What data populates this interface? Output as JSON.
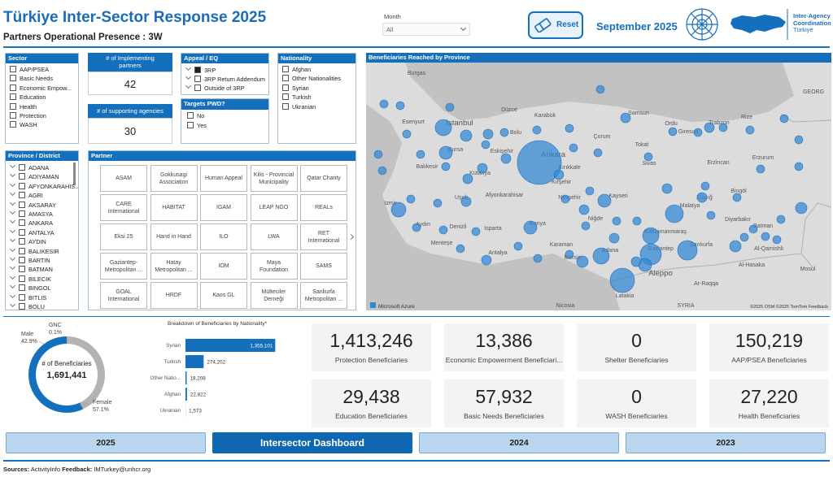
{
  "header": {
    "title": "Türkiye Inter-Sector Response 2025",
    "subtitle": "Partners Operational Presence : 3W",
    "month_label": "Month",
    "month_value": "All",
    "reset": "Reset",
    "period": "September 2025",
    "logo_text": [
      "Inter-Agency",
      "Coordination",
      "Türkiye"
    ]
  },
  "filters": {
    "sector": {
      "title": "Sector",
      "items": [
        "AAP/PSEA",
        "Basic Needs",
        "Economic Empow...",
        "Education",
        "Health",
        "Protection",
        "WASH"
      ]
    },
    "appeal": {
      "title": "Appeal / EQ",
      "items": [
        "3RP",
        "3RP Return Addendum",
        "Outside of 3RP"
      ]
    },
    "pwd": {
      "title": "Targets PWD?",
      "items": [
        "No",
        "Yes"
      ]
    },
    "nationality": {
      "title": "Nationality",
      "items": [
        "Afghan",
        "Other Nationalities",
        "Syrian",
        "Turkish",
        "Ukranian"
      ]
    },
    "province": {
      "title": "Province / District",
      "items": [
        "ADANA",
        "ADIYAMAN",
        "AFYONKARAHIS...",
        "AGRI",
        "AKSARAY",
        "AMASYA",
        "ANKARA",
        "ANTALYA",
        "AYDIN",
        "BALIKESIR",
        "BARTIN",
        "BATMAN",
        "BILECIK",
        "BINGOL",
        "BITLIS",
        "BOLU"
      ]
    }
  },
  "counts": [
    {
      "title": "# of Implementing partners",
      "value": "42"
    },
    {
      "title": "# of supporting agencies",
      "value": "30"
    }
  ],
  "partners": {
    "title": "Partner",
    "items": [
      "ASAM",
      "Gokkusagi Association",
      "Human Appeal",
      "Kilis - Provincial Municipality",
      "Qatar Charity",
      "CARE International",
      "HABITAT",
      "IGAM",
      "LEAP NGO",
      "REALs",
      "Eksi 25",
      "Hand in Hand",
      "ILO",
      "LWA",
      "RET International",
      "Gaziantep-Metropolitan ...",
      "Hatay Metropolitan ...",
      "IOM",
      "Maya Foundation",
      "SAMS",
      "GOAL International",
      "HRDF",
      "Kaos GL",
      "Mülteciler Derneği",
      "Sanliurfa Metropolitan ..."
    ]
  },
  "map": {
    "title": "Beneficiaries Reached by Province",
    "labels": [
      "Burgas",
      "Istanbul",
      "Esenyurt",
      "Bursa",
      "Balıkesir",
      "Kütahya",
      "Eskişehir",
      "Ankara",
      "Kırıkkale",
      "Izmir",
      "Uşak",
      "Afyonkarahisar",
      "Aydın",
      "Denizli",
      "Isparta",
      "Konya",
      "Menteşe",
      "Antalya",
      "Karaman",
      "Mersin",
      "Adana",
      "Niğde",
      "Nevşehir",
      "Kayseri",
      "Kırşehir",
      "Sivas",
      "Tokat",
      "Çorum",
      "Samsun",
      "Karabük",
      "Düzce",
      "Bolu",
      "Ordu",
      "Giresun",
      "Trabzon",
      "Rize",
      "Erzincan",
      "Erzurum",
      "Bingöl",
      "Elazığ",
      "Malatya",
      "Diyarbakır",
      "Batman",
      "Kahramanmaraş",
      "Gaziantep",
      "Şanlıurfa",
      "Al-Qamishli",
      "Al-Hasaka",
      "Mosul",
      "Aleppo",
      "Ar-Raqqa",
      "Latakia",
      "SYRIA",
      "Nicosia",
      "GEORG"
    ],
    "brand": "Microsoft Azure",
    "credits": "©2025 OSM ©2025 TomTom Feedback"
  },
  "chart_data": [
    {
      "type": "donut",
      "center_label": "# of Beneficiaries",
      "center_value": "1,691,441",
      "categories": [
        "GNC",
        "Male",
        "Female"
      ],
      "values": [
        0.1,
        42.9,
        57.1
      ],
      "value_labels": [
        "0.1%",
        "42.9%",
        "57.1%"
      ],
      "colors": [
        "#3a3a3a",
        "#b3b3b3",
        "#1470bd"
      ]
    },
    {
      "type": "bar",
      "orientation": "horizontal",
      "title": "Breakdown of Beneficiaries by Nationality*",
      "categories": [
        "Syrian",
        "Turkish",
        "Other Natio...",
        "Afghan",
        "Ukranian"
      ],
      "values": [
        1355101,
        274202,
        18208,
        22822,
        1573
      ],
      "value_labels": [
        "1,355,101",
        "274,202",
        "18,208",
        "22,822",
        "1,573"
      ],
      "color": "#1470bd",
      "xlim": [
        0,
        1400000
      ]
    }
  ],
  "kpis": [
    {
      "value": "1,413,246",
      "label": "Protection Beneficiaries"
    },
    {
      "value": "13,386",
      "label": "Economic Empowerment Beneficiari..."
    },
    {
      "value": "0",
      "label": "Shelter Beneficiaries"
    },
    {
      "value": "150,219",
      "label": "AAP/PSEA Beneficiaries"
    },
    {
      "value": "29,438",
      "label": "Education Beneficiaries"
    },
    {
      "value": "57,932",
      "label": "Basic Needs Beneficiaries"
    },
    {
      "value": "0",
      "label": "WASH Beneficiaries"
    },
    {
      "value": "27,220",
      "label": "Health Beneficiaries"
    }
  ],
  "tabs": [
    "2025",
    "Intersector Dashboard",
    "2024",
    "2023"
  ],
  "footer": {
    "sources_label": "Sources:",
    "sources": "ActivityInfo",
    "feedback_label": "Feedback:",
    "feedback": "IMTurkey@unhcr.org"
  }
}
